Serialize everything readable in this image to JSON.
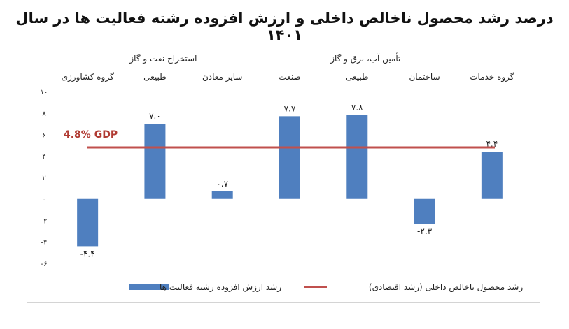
{
  "title": "درصد رشد محصول ناخالص داخلی و ارزش افزوده رشته فعالیت ها در سال ۱۴۰۱",
  "chart_data": {
    "type": "bar",
    "categories": [
      [
        "گروه کشاورزی"
      ],
      [
        "استخراج نفت و گاز",
        "طبیعی"
      ],
      [
        "سایر معادن"
      ],
      [
        "صنعت"
      ],
      [
        "تأمین آب، برق و گاز",
        "طبیعی"
      ],
      [
        "ساختمان"
      ],
      [
        "گروه خدمات"
      ]
    ],
    "series": [
      {
        "name": "رشد ارزش افزوده رشته فعالیت ها",
        "values": [
          -4.4,
          7.0,
          0.7,
          7.7,
          7.8,
          -2.3,
          4.4
        ],
        "labels": [
          "-۴.۴",
          "۷.۰",
          "۰.۷",
          "۷.۷",
          "۷.۸",
          "-۲.۳",
          "۴.۴"
        ],
        "color": "#4f7fbf"
      },
      {
        "name": "رشد محصول ناخالص داخلی (رشد اقتصادی)",
        "type": "line",
        "value": 4.8,
        "label": "4.8%  GDP",
        "color": "#c0504d"
      }
    ],
    "yticks": [
      -6,
      -4,
      -2,
      0,
      2,
      4,
      6,
      8,
      10
    ],
    "ytick_labels": [
      "-۶",
      "-۴",
      "-۲",
      "۰",
      "۲",
      "۴",
      "۶",
      "۸",
      "۱۰"
    ],
    "ylim": [
      -6,
      10
    ],
    "legend_position": "bottom",
    "grid": false
  }
}
